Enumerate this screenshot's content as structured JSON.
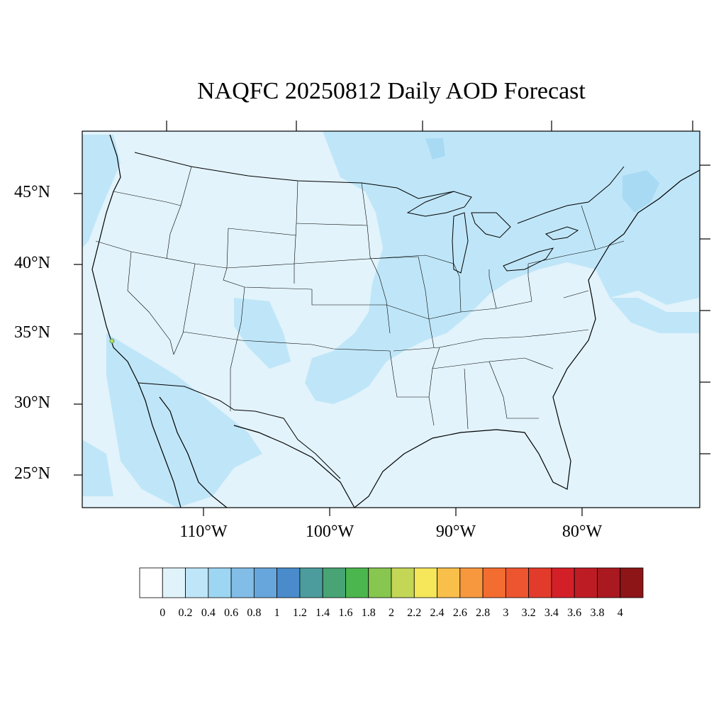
{
  "title": "NAQFC 20250812 Daily AOD Forecast",
  "map": {
    "region": "Contiguous United States",
    "variable": "Daily AOD",
    "colors": {
      "ocean": "#e2f3fb",
      "land_base": "#dff2fb",
      "aod_02_04": "#bfe6f8",
      "aod_04_06": "#a8daf4",
      "borders": "#000000"
    },
    "lat_labels": [
      "45°N",
      "40°N",
      "35°N",
      "30°N",
      "25°N"
    ],
    "lon_labels": [
      "110°W",
      "100°W",
      "90°W",
      "80°W"
    ]
  },
  "colorbar": {
    "labels": [
      "0",
      "0.2",
      "0.4",
      "0.6",
      "0.8",
      "1",
      "1.2",
      "1.4",
      "1.6",
      "1.8",
      "2",
      "2.2",
      "2.4",
      "2.6",
      "2.8",
      "3",
      "3.2",
      "3.4",
      "3.6",
      "3.8",
      "4"
    ],
    "colors": [
      "#ffffff",
      "#e0f3fb",
      "#bee6f8",
      "#9dd6f3",
      "#81bde6",
      "#67a6dc",
      "#4a8ccb",
      "#4c9c9e",
      "#48a474",
      "#4bb64e",
      "#87c64f",
      "#c4d656",
      "#f5e65a",
      "#f9bf4b",
      "#f7983f",
      "#f36c30",
      "#ec5530",
      "#e23b2b",
      "#d32028",
      "#be1c25",
      "#a9191f",
      "#8d1517"
    ]
  }
}
